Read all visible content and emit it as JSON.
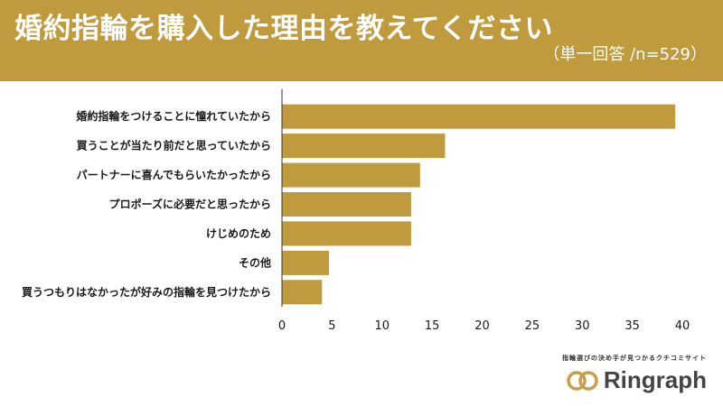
{
  "header": {
    "title": "婚約指輪を購入した理由を教えてください",
    "subtitle": "（単一回答 /n=529）"
  },
  "brand": {
    "tagline": "指輪選びの決め手が見つかるクチコミサイト",
    "name": "Ringraph"
  },
  "colors": {
    "accent": "#bf9b3e",
    "brand_logo": "#c9a04a"
  },
  "chart_data": {
    "type": "bar",
    "orientation": "horizontal",
    "title": "婚約指輪を購入した理由を教えてください",
    "categories": [
      "婚約指輪をつけることに憧れていたから",
      "買うことが当たり前だと思っていたから",
      "パートナーに喜んでもらいたかったから",
      "プロポーズに必要だと思ったから",
      "けじめのため",
      "その他",
      "買うつもりはなかったが好みの指輪を見つけたから"
    ],
    "values": [
      39.3,
      16.3,
      13.8,
      12.9,
      12.9,
      4.7,
      4.0
    ],
    "xlim": [
      0,
      40
    ],
    "xticks": [
      0,
      5,
      10,
      15,
      20,
      25,
      30,
      35,
      40
    ],
    "grid": false
  }
}
